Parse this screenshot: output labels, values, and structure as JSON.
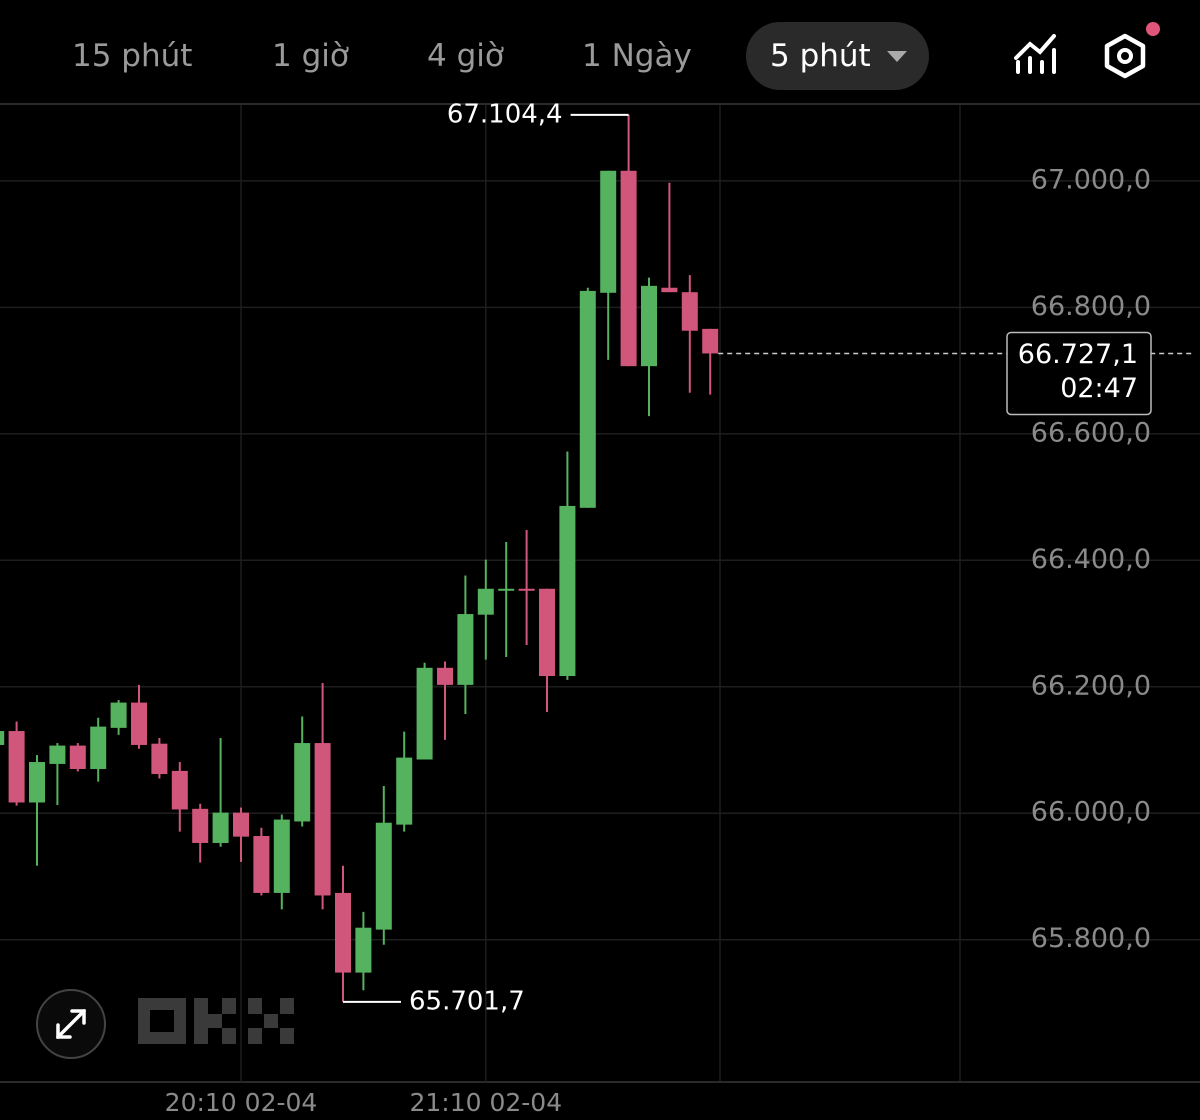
{
  "tabs": [
    "15 phút",
    "1 giờ",
    "4 giờ",
    "1 Ngày",
    "5 phút"
  ],
  "active_tab": 4,
  "chart_data": {
    "type": "candlestick",
    "categories": [
      null,
      null,
      null,
      null,
      null,
      null,
      null,
      null,
      null,
      null,
      null,
      null,
      "20:10 02-04",
      null,
      null,
      null,
      null,
      null,
      null,
      null,
      null,
      null,
      null,
      null,
      "21:10 02-04",
      null,
      null,
      null,
      null,
      null,
      null,
      null,
      null,
      null,
      null,
      null
    ],
    "open": [
      66108,
      66130,
      66017,
      66078,
      66107,
      66070,
      66135,
      66175,
      66110,
      66067,
      66007,
      65953,
      66001,
      65964,
      65874,
      65987,
      66111,
      65874,
      65748,
      65816,
      65982,
      66085,
      66230,
      66203,
      66314,
      66352,
      66355,
      66355,
      66217,
      66483,
      66823,
      67016,
      66707,
      66831,
      66824,
      66766
    ],
    "high": [
      66198,
      66145,
      66092,
      66111,
      66111,
      66151,
      66179,
      66203,
      66119,
      66081,
      66015,
      66119,
      66009,
      65977,
      65998,
      66153,
      66206,
      65917,
      65844,
      66043,
      66129,
      66238,
      66240,
      66376,
      66401,
      66429,
      66448,
      66355,
      66572,
      66831,
      67016,
      67104.4,
      66847,
      66997,
      66851,
      66766
    ],
    "low": [
      66061,
      66012,
      65917,
      66013,
      66066,
      66050,
      66124,
      66102,
      66055,
      65971,
      65922,
      65947,
      65923,
      65870,
      65848,
      65979,
      65848,
      65701.7,
      65720,
      65792,
      65971,
      66085,
      66116,
      66157,
      66243,
      66247,
      66266,
      66160,
      66211,
      66483,
      66717,
      66707,
      66628,
      66824,
      66665,
      66662
    ],
    "close": [
      66130,
      66017,
      66081,
      66107,
      66070,
      66137,
      66175,
      66108,
      66062,
      66006,
      65953,
      66001,
      65963,
      65874,
      65990,
      66111,
      65870,
      65748,
      65819,
      65985,
      66088,
      66230,
      66203,
      66315,
      66355,
      66355,
      66353,
      66217,
      66486,
      66826,
      67016,
      66707,
      66834,
      66824,
      66763,
      66727.1
    ],
    "up_color": "#55b25f",
    "down_color": "#d1567c",
    "ylim": [
      65575,
      67120
    ],
    "yticks": [
      {
        "value": 65800,
        "label": "65.800,0"
      },
      {
        "value": 66000,
        "label": "66.000,0"
      },
      {
        "value": 66200,
        "label": "66.200,0"
      },
      {
        "value": 66400,
        "label": "66.400,0"
      },
      {
        "value": 66600,
        "label": "66.600,0"
      },
      {
        "value": 66800,
        "label": "66.800,0"
      },
      {
        "value": 67000,
        "label": "67.000,0"
      }
    ],
    "grid": true,
    "high_label": "67.104,4",
    "low_label": "65.701,7",
    "last_price_label": "66.727,1",
    "countdown": "02:47"
  }
}
